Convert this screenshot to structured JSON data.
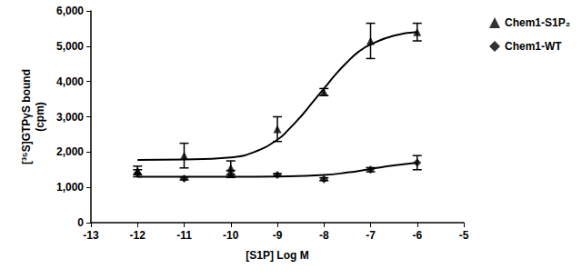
{
  "chart_data": {
    "type": "scatter",
    "xlabel": "[S1P] Log M",
    "ylabel": "[³⁵S]GTPγS bound\n(cpm)",
    "xlim": [
      -13,
      -5
    ],
    "xticks": [
      -13,
      -12,
      -11,
      -10,
      -9,
      -8,
      -7,
      -6,
      -5
    ],
    "ylim": [
      0,
      6000
    ],
    "yticks": [
      0,
      1000,
      2000,
      3000,
      4000,
      5000,
      6000
    ],
    "grid": false,
    "legend": "right",
    "series": [
      {
        "name": "Chem1-S1P₂",
        "color": "#000000",
        "marker": "triangle",
        "x": [
          -12,
          -11,
          -10,
          -9,
          -8,
          -7,
          -6
        ],
        "values": [
          1480,
          1900,
          1550,
          2650,
          3700,
          5150,
          5400
        ],
        "errors": [
          120,
          350,
          200,
          350,
          100,
          500,
          250
        ],
        "fit": {
          "x": [
            -12,
            -11,
            -10,
            -9.5,
            -9,
            -8.75,
            -8.5,
            -8.25,
            -8,
            -7.75,
            -7.5,
            -7.25,
            -7,
            -6.5,
            -6
          ],
          "values": [
            1780,
            1790,
            1850,
            2000,
            2350,
            2650,
            3000,
            3400,
            3800,
            4200,
            4550,
            4850,
            5050,
            5300,
            5400
          ]
        }
      },
      {
        "name": "Chem1-WT",
        "color": "#000000",
        "marker": "diamond",
        "x": [
          -12,
          -11,
          -10,
          -9,
          -8,
          -7,
          -6
        ],
        "values": [
          1400,
          1250,
          1380,
          1350,
          1230,
          1500,
          1700
        ],
        "errors": [
          100,
          40,
          100,
          40,
          40,
          60,
          200
        ],
        "fit": {
          "x": [
            -12,
            -10,
            -9,
            -8,
            -7.5,
            -7,
            -6.5,
            -6
          ],
          "values": [
            1300,
            1300,
            1310,
            1350,
            1420,
            1520,
            1620,
            1700
          ]
        }
      }
    ]
  }
}
